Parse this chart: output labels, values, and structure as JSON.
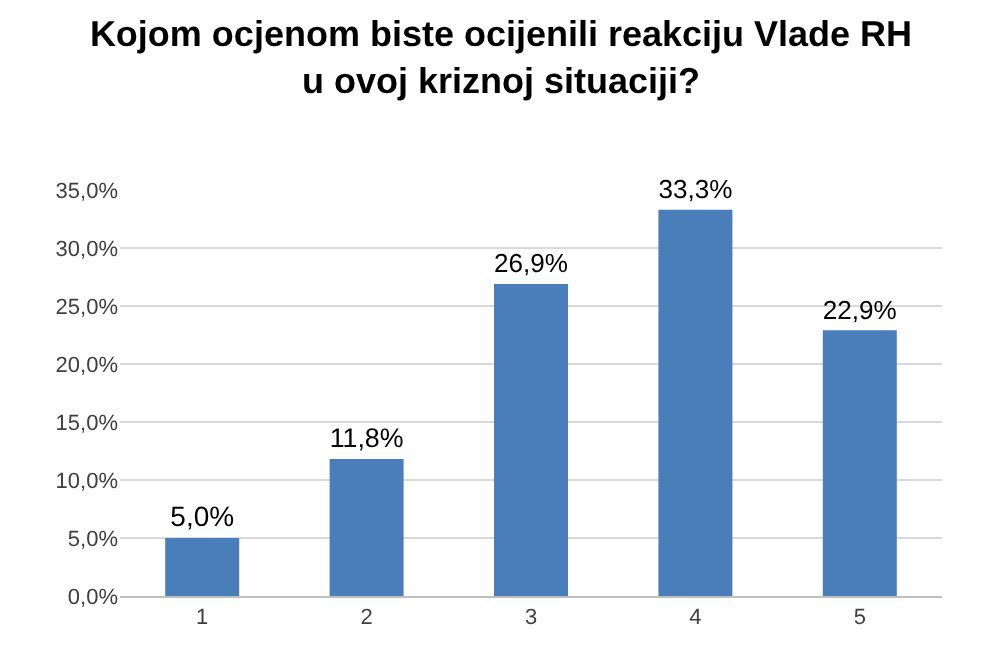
{
  "chart_data": {
    "type": "bar",
    "title": "Kojom ocjenom biste ocijenili reakciju Vlade RH\nu ovoj kriznoj situaciji?",
    "categories": [
      "1",
      "2",
      "3",
      "4",
      "5"
    ],
    "values": [
      5.0,
      11.8,
      26.9,
      33.3,
      22.9
    ],
    "value_labels": [
      "5,0%",
      "11,8%",
      "26,9%",
      "33,3%",
      "22,9%"
    ],
    "color": "#4a7ebb",
    "ylim": [
      0,
      35
    ],
    "yticks": [
      {
        "value": 0,
        "label": "0,0%"
      },
      {
        "value": 5,
        "label": "5,0%"
      },
      {
        "value": 10,
        "label": "10,0%"
      },
      {
        "value": 15,
        "label": "15,0%"
      },
      {
        "value": 20,
        "label": "20,0%"
      },
      {
        "value": 25,
        "label": "25,0%"
      },
      {
        "value": 30,
        "label": "30,0%"
      },
      {
        "value": 35,
        "label": "35,0%"
      }
    ],
    "grid": "y"
  }
}
